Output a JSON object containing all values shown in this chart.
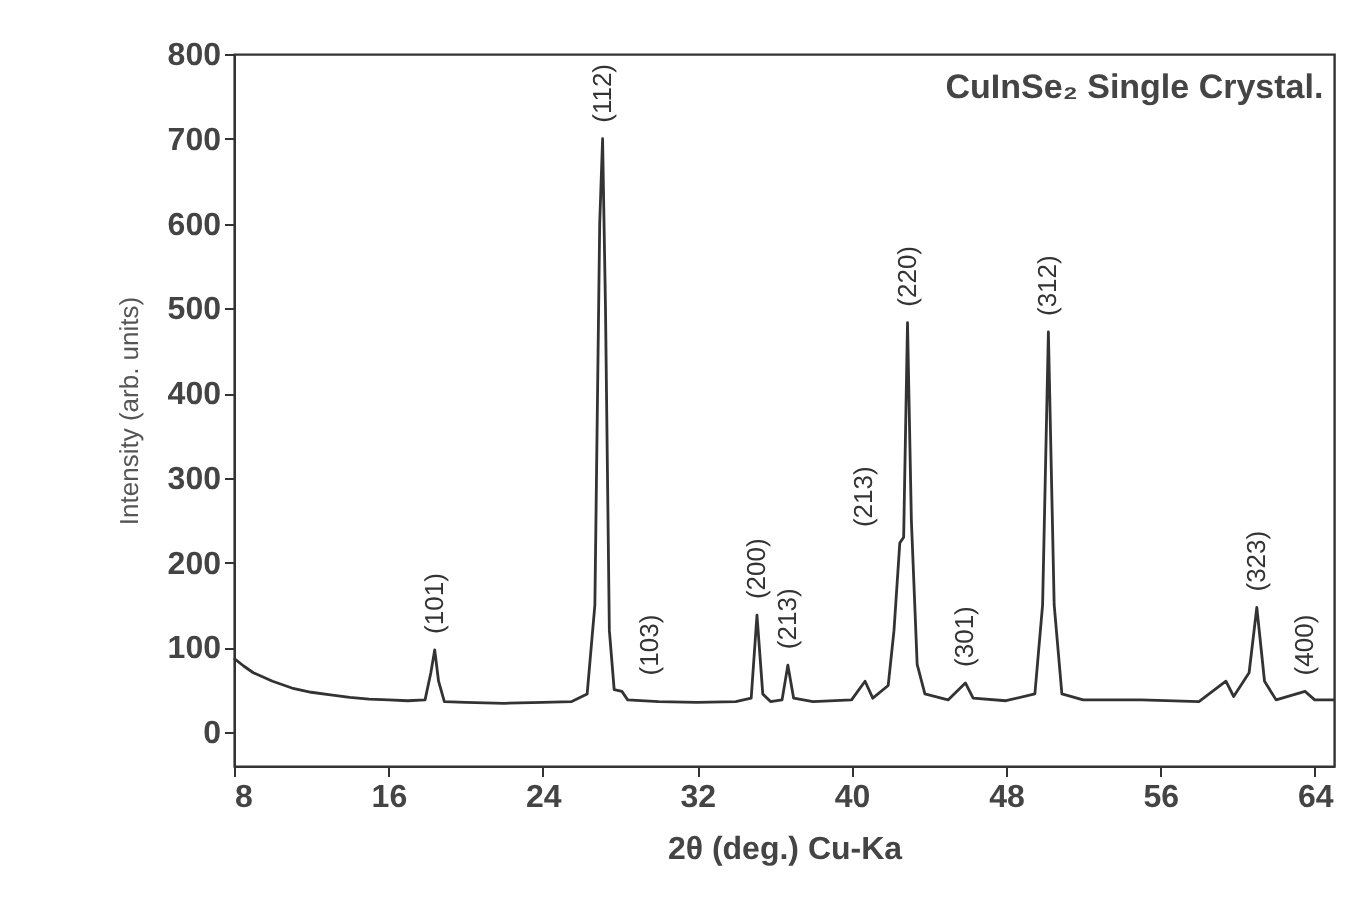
{
  "chart_data": {
    "type": "line",
    "title": "CuInSe₂ Single Crystal.",
    "xlabel": "2θ (deg.) Cu-Ka",
    "ylabel": "Intensity (arb. units)",
    "xlim": [
      8,
      65
    ],
    "xticks": [
      8,
      16,
      24,
      32,
      40,
      48,
      56,
      64
    ],
    "ylim": [
      -40,
      800
    ],
    "yticks": [
      0,
      100,
      200,
      300,
      400,
      500,
      600,
      700,
      800
    ],
    "x": [
      8,
      8.5,
      9,
      10,
      11,
      12,
      13,
      14,
      15,
      16,
      17,
      17.9,
      18.2,
      18.4,
      18.6,
      18.9,
      20,
      22,
      24,
      25.5,
      26.3,
      26.7,
      26.95,
      27.1,
      27.25,
      27.45,
      27.7,
      28.1,
      28.4,
      30,
      32,
      34,
      34.8,
      35.1,
      35.4,
      35.8,
      36.4,
      36.7,
      37,
      38,
      40,
      40.7,
      41.1,
      41.9,
      42.2,
      42.5,
      42.7,
      42.9,
      43.1,
      43.4,
      43.8,
      45,
      45.9,
      46.3,
      48,
      49.5,
      49.9,
      50.2,
      50.5,
      50.9,
      52,
      55,
      58,
      59.4,
      59.8,
      60.6,
      61,
      61.4,
      62,
      63.5,
      64,
      65
    ],
    "series": [
      {
        "color": "#333333",
        "values": [
          87,
          78,
          70,
          60,
          52,
          47,
          44,
          41,
          39,
          38,
          37,
          38,
          70,
          97,
          60,
          36,
          35,
          34,
          35,
          36,
          45,
          150,
          600,
          700,
          500,
          120,
          50,
          48,
          38,
          36,
          35,
          36,
          40,
          138,
          45,
          36,
          38,
          79,
          40,
          36,
          38,
          60,
          40,
          55,
          120,
          223,
          230,
          483,
          250,
          80,
          45,
          38,
          58,
          40,
          37,
          45,
          150,
          472,
          150,
          45,
          38,
          38,
          36,
          60,
          42,
          70,
          147,
          60,
          38,
          48,
          38,
          38
        ]
      }
    ],
    "annotations": [
      {
        "text": "(101)",
        "x": 18.4,
        "y": 97
      },
      {
        "text": "(112)",
        "x": 27.1,
        "y": 700
      },
      {
        "text": "(103)",
        "x": 28.1,
        "y": 48
      },
      {
        "text": "(200)",
        "x": 35.1,
        "y": 138
      },
      {
        "text": "(213)",
        "x": 36.7,
        "y": 79
      },
      {
        "text": "(213)",
        "x": 42.5,
        "y": 223
      },
      {
        "text": "(220)",
        "x": 42.9,
        "y": 483
      },
      {
        "text": "(301)",
        "x": 45.9,
        "y": 58
      },
      {
        "text": "(312)",
        "x": 50.2,
        "y": 472
      },
      {
        "text": "(323)",
        "x": 61,
        "y": 147
      },
      {
        "text": "(400)",
        "x": 63.5,
        "y": 48
      }
    ],
    "marker": "none",
    "line_style": "solid",
    "grid": false
  }
}
